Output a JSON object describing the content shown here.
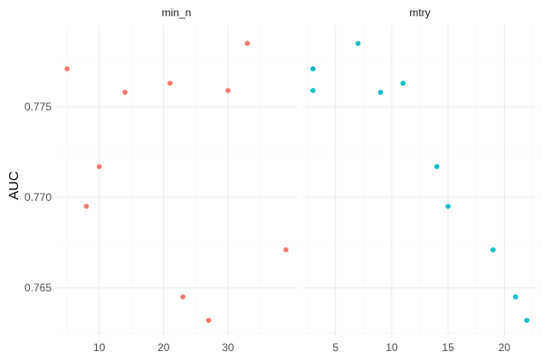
{
  "chart_data": {
    "type": "scatter",
    "ylabel": "AUC",
    "ylim": [
      0.7624,
      0.7795
    ],
    "y_ticks": [
      0.765,
      0.77,
      0.775
    ],
    "y_tick_labels": [
      "0.765",
      "0.770",
      "0.775"
    ],
    "grid": true,
    "legend": "none",
    "panels": [
      {
        "name": "min_n",
        "color": "#F8766D",
        "xlim": [
          3.3,
          40.7
        ],
        "x_ticks": [
          10,
          20,
          30
        ],
        "x_tick_labels": [
          "10",
          "20",
          "30"
        ],
        "points": [
          {
            "x": 5,
            "y": 0.7771
          },
          {
            "x": 8,
            "y": 0.7695
          },
          {
            "x": 10,
            "y": 0.7717
          },
          {
            "x": 14,
            "y": 0.7758
          },
          {
            "x": 21,
            "y": 0.7763
          },
          {
            "x": 23,
            "y": 0.7645
          },
          {
            "x": 27,
            "y": 0.7632
          },
          {
            "x": 30,
            "y": 0.7759
          },
          {
            "x": 33,
            "y": 0.7785
          },
          {
            "x": 39,
            "y": 0.7671
          }
        ]
      },
      {
        "name": "mtry",
        "color": "#00BFC4",
        "xlim": [
          2.05,
          22.95
        ],
        "x_ticks": [
          5,
          10,
          15,
          20
        ],
        "x_tick_labels": [
          "5",
          "10",
          "15",
          "20"
        ],
        "points": [
          {
            "x": 3,
            "y": 0.7771
          },
          {
            "x": 3,
            "y": 0.7759
          },
          {
            "x": 7,
            "y": 0.7785
          },
          {
            "x": 9,
            "y": 0.7758
          },
          {
            "x": 11,
            "y": 0.7763
          },
          {
            "x": 14,
            "y": 0.7717
          },
          {
            "x": 15,
            "y": 0.7695
          },
          {
            "x": 19,
            "y": 0.7671
          },
          {
            "x": 21,
            "y": 0.7645
          },
          {
            "x": 22,
            "y": 0.7632
          }
        ]
      }
    ]
  }
}
